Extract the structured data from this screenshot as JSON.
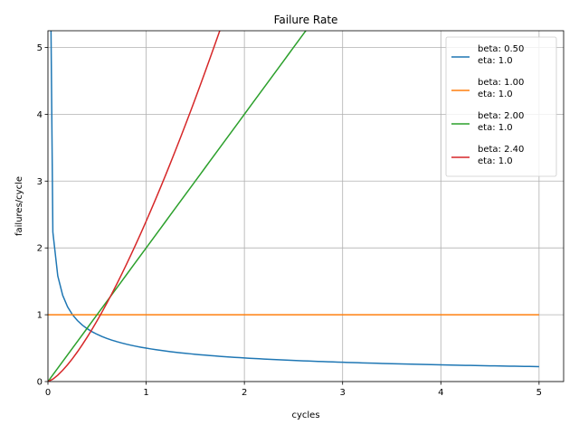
{
  "chart_data": {
    "type": "line",
    "title": "Failure Rate",
    "xlabel": "cycles",
    "ylabel": "failures/cycle",
    "xlim": [
      0,
      5.25
    ],
    "ylim": [
      0,
      5.25
    ],
    "xticks": [
      0,
      1,
      2,
      3,
      4,
      5
    ],
    "yticks": [
      0,
      1,
      2,
      3,
      4,
      5
    ],
    "x_tick_labels": [
      "0",
      "1",
      "2",
      "3",
      "4",
      "5"
    ],
    "y_tick_labels": [
      "0",
      "1",
      "2",
      "3",
      "4",
      "5"
    ],
    "grid": true,
    "legend_position": "top-right",
    "x_range": [
      0,
      5
    ],
    "series": [
      {
        "name": "beta: 0.50\neta: 1.0",
        "beta": 0.5,
        "eta": 1.0,
        "color": "#1f77b4"
      },
      {
        "name": "beta: 1.00\neta: 1.0",
        "beta": 1.0,
        "eta": 1.0,
        "color": "#ff7f0e"
      },
      {
        "name": "beta: 2.00\neta: 1.0",
        "beta": 2.0,
        "eta": 1.0,
        "color": "#2ca02c"
      },
      {
        "name": "beta: 2.40\neta: 1.0",
        "beta": 2.4,
        "eta": 1.0,
        "color": "#d62728"
      }
    ]
  }
}
